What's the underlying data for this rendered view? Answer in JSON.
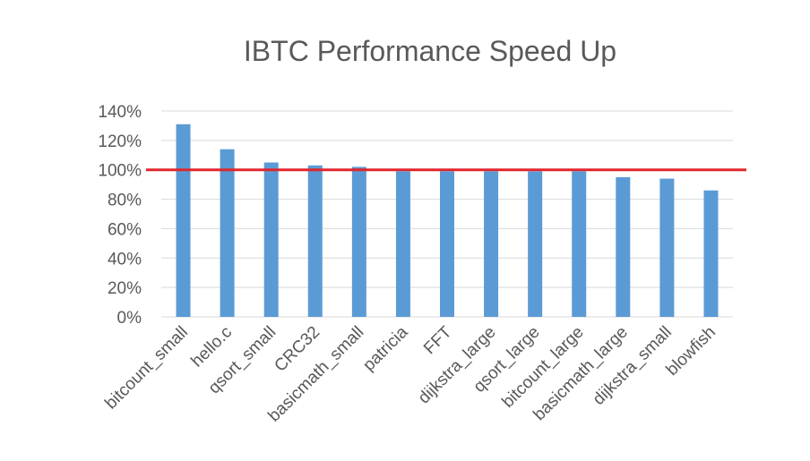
{
  "chart_data": {
    "type": "bar",
    "title": "IBTC Performance Speed Up",
    "xlabel": "",
    "ylabel": "",
    "categories": [
      "bitcount_small",
      "hello.c",
      "qsort_small",
      "CRC32",
      "basicmath_small",
      "patricia",
      "FFT",
      "dijkstra_large",
      "qsort_large",
      "bitcount_large",
      "basicmath_large",
      "dijkstra_small",
      "blowfish"
    ],
    "values": [
      131,
      114,
      105,
      103,
      102,
      99,
      99,
      99,
      99,
      99,
      95,
      94,
      86
    ],
    "unit": "%",
    "ylim": [
      0,
      140
    ],
    "yticks": [
      0,
      20,
      40,
      60,
      80,
      100,
      120,
      140
    ],
    "ytick_labels": [
      "0%",
      "20%",
      "40%",
      "60%",
      "80%",
      "100%",
      "120%",
      "140%"
    ],
    "grid": true,
    "bar_color": "#5b9bd5",
    "reference_line": {
      "value": 100,
      "color": "#e0262d"
    }
  }
}
